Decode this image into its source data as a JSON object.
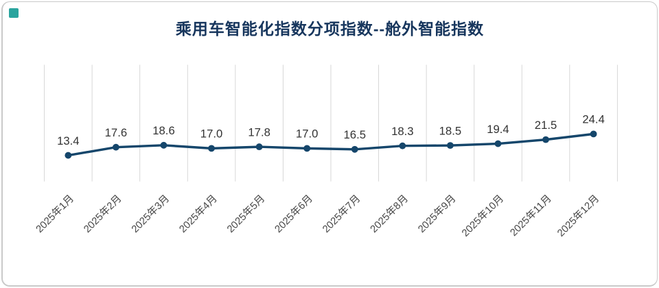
{
  "card": {
    "title": "乘用车智能化指数分项指数--舱外智能指数"
  },
  "colors": {
    "accent_square": "#2aa49e",
    "title": "#17365d",
    "line": "#15466b",
    "marker": "#15466b",
    "value_label": "#333333",
    "axis_label": "#474747",
    "gridline": "#d6d6d6",
    "card_border": "#c9c9c9",
    "background": "#ffffff"
  },
  "chart_data": {
    "type": "line",
    "title": "乘用车智能化指数分项指数--舱外智能指数",
    "categories": [
      "2025年1月",
      "2025年2月",
      "2025年3月",
      "2025年4月",
      "2025年5月",
      "2025年6月",
      "2025年7月",
      "2025年8月",
      "2025年9月",
      "2025年10月",
      "2025年11月",
      "2025年12月"
    ],
    "values": [
      13.4,
      17.6,
      18.6,
      17.0,
      17.8,
      17.0,
      16.5,
      18.3,
      18.5,
      19.4,
      21.5,
      24.4
    ],
    "value_labels": [
      "13.4",
      "17.6",
      "18.6",
      "17.0",
      "17.8",
      "17.0",
      "16.5",
      "18.3",
      "18.5",
      "19.4",
      "21.5",
      "24.4"
    ],
    "series_name": "舱外智能指数",
    "xlabel": "",
    "ylabel": "",
    "ylim": [
      0,
      60
    ],
    "grid": "vertical-only",
    "legend": "none",
    "data_labels": "above-points"
  }
}
